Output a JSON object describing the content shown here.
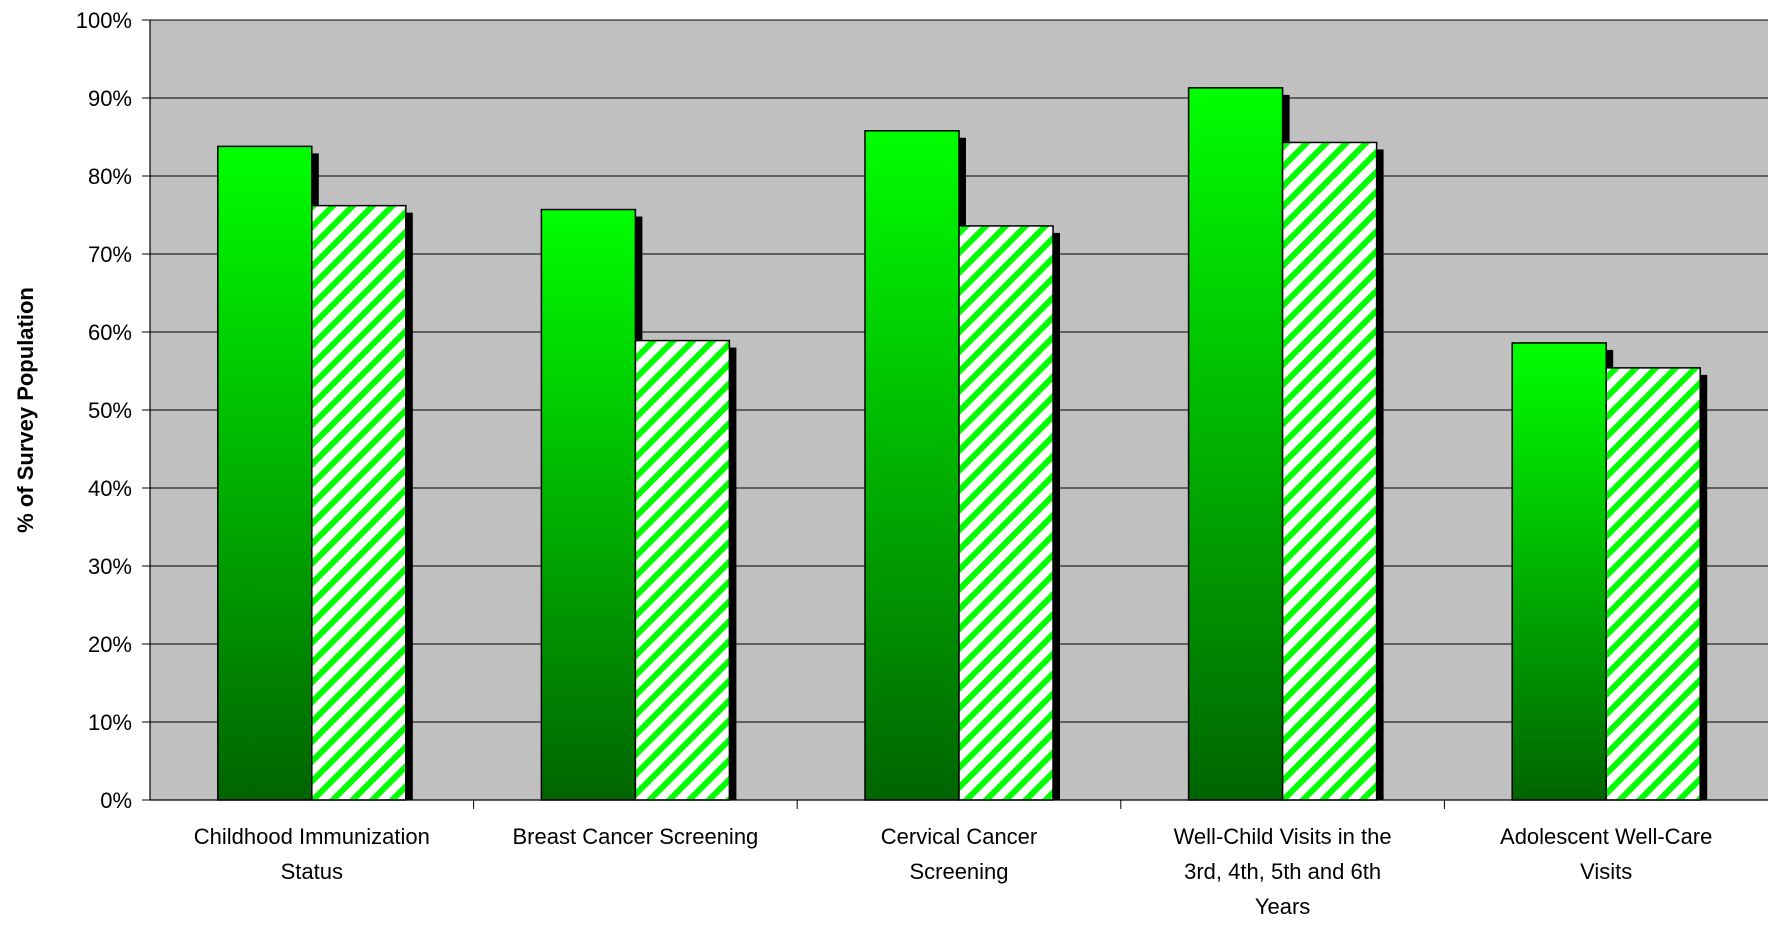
{
  "chart_data": {
    "type": "bar",
    "title": "",
    "xlabel": "",
    "ylabel": "% of Survey Population",
    "ylim": [
      0,
      100
    ],
    "y_ticks": [
      "0%",
      "10%",
      "20%",
      "30%",
      "40%",
      "50%",
      "60%",
      "70%",
      "80%",
      "90%",
      "100%"
    ],
    "categories": [
      [
        "Childhood Immunization",
        "Status"
      ],
      [
        "Breast Cancer Screening"
      ],
      [
        "Cervical Cancer",
        "Screening"
      ],
      [
        "Well-Child Visits in the",
        "3rd, 4th, 5th and 6th",
        "Years"
      ],
      [
        "Adolescent Well-Care",
        "Visits"
      ]
    ],
    "series": [
      {
        "values": [
          83.8,
          75.7,
          85.8,
          91.3,
          58.6
        ],
        "fill": "solid-green-gradient"
      },
      {
        "values": [
          76.2,
          58.9,
          73.6,
          84.3,
          55.4
        ],
        "fill": "green-diagonal-hatch"
      }
    ],
    "grid": true,
    "legend": "none",
    "colors": {
      "plot_background": "#c0c0c0",
      "bar_top": "#00ff00",
      "bar_bottom": "#006400",
      "hatch_line": "#00ff00",
      "hatch_bg": "#ffffff",
      "shadow": "#000000"
    }
  }
}
